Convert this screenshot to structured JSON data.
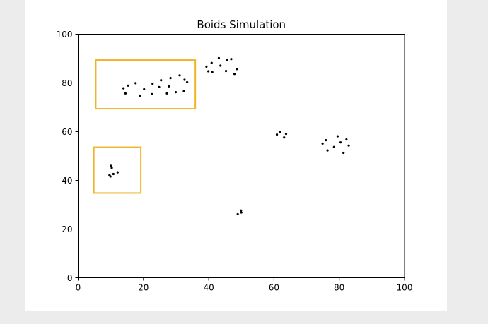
{
  "chart_data": {
    "type": "scatter",
    "title": "Boids Simulation",
    "xlabel": "",
    "ylabel": "",
    "xlim": [
      0,
      100
    ],
    "ylim": [
      0,
      100
    ],
    "xticks": [
      0,
      20,
      40,
      60,
      80,
      100
    ],
    "yticks": [
      0,
      20,
      40,
      60,
      80,
      100
    ],
    "xtick_labels": [
      "0",
      "20",
      "40",
      "60",
      "80",
      "100"
    ],
    "ytick_labels": [
      "0",
      "20",
      "40",
      "60",
      "80",
      "100"
    ],
    "grid": false,
    "marker_color": "#000000",
    "highlight_color": "#f0b429",
    "highlight_boxes": [
      {
        "x": [
          5.4,
          35.9
        ],
        "y": [
          69.4,
          89.4
        ]
      },
      {
        "x": [
          4.8,
          19.2
        ],
        "y": [
          34.8,
          53.6
        ]
      }
    ],
    "points": [
      {
        "x": 13.9,
        "y": 77.8
      },
      {
        "x": 14.5,
        "y": 75.7
      },
      {
        "x": 15.3,
        "y": 78.9
      },
      {
        "x": 17.6,
        "y": 79.9
      },
      {
        "x": 18.9,
        "y": 74.8
      },
      {
        "x": 20.2,
        "y": 77.4
      },
      {
        "x": 22.6,
        "y": 75.4
      },
      {
        "x": 22.8,
        "y": 79.7
      },
      {
        "x": 24.8,
        "y": 78.3
      },
      {
        "x": 25.4,
        "y": 81.1
      },
      {
        "x": 27.2,
        "y": 75.7
      },
      {
        "x": 27.8,
        "y": 78.6
      },
      {
        "x": 28.3,
        "y": 82.0
      },
      {
        "x": 29.9,
        "y": 76.2
      },
      {
        "x": 31.1,
        "y": 83.1
      },
      {
        "x": 32.4,
        "y": 76.6
      },
      {
        "x": 32.6,
        "y": 81.3
      },
      {
        "x": 33.4,
        "y": 80.3
      },
      {
        "x": 39.3,
        "y": 86.7
      },
      {
        "x": 39.9,
        "y": 84.8
      },
      {
        "x": 40.9,
        "y": 88.2
      },
      {
        "x": 41.1,
        "y": 84.4
      },
      {
        "x": 43.1,
        "y": 90.2
      },
      {
        "x": 43.6,
        "y": 87.1
      },
      {
        "x": 45.3,
        "y": 84.9
      },
      {
        "x": 45.6,
        "y": 89.3
      },
      {
        "x": 46.9,
        "y": 89.8
      },
      {
        "x": 47.9,
        "y": 83.7
      },
      {
        "x": 48.6,
        "y": 85.7
      },
      {
        "x": 9.6,
        "y": 42.1
      },
      {
        "x": 9.9,
        "y": 41.6
      },
      {
        "x": 10.0,
        "y": 46.0
      },
      {
        "x": 10.3,
        "y": 45.1
      },
      {
        "x": 10.8,
        "y": 42.6
      },
      {
        "x": 12.1,
        "y": 43.3
      },
      {
        "x": 48.9,
        "y": 26.1
      },
      {
        "x": 49.9,
        "y": 27.6
      },
      {
        "x": 50.0,
        "y": 26.8
      },
      {
        "x": 60.9,
        "y": 58.8
      },
      {
        "x": 61.9,
        "y": 59.9
      },
      {
        "x": 63.1,
        "y": 57.6
      },
      {
        "x": 63.7,
        "y": 59.1
      },
      {
        "x": 74.9,
        "y": 55.1
      },
      {
        "x": 75.9,
        "y": 56.5
      },
      {
        "x": 76.4,
        "y": 52.3
      },
      {
        "x": 78.4,
        "y": 53.7
      },
      {
        "x": 79.5,
        "y": 58.1
      },
      {
        "x": 80.4,
        "y": 55.6
      },
      {
        "x": 81.3,
        "y": 51.3
      },
      {
        "x": 82.2,
        "y": 56.8
      },
      {
        "x": 82.9,
        "y": 54.3
      }
    ]
  }
}
